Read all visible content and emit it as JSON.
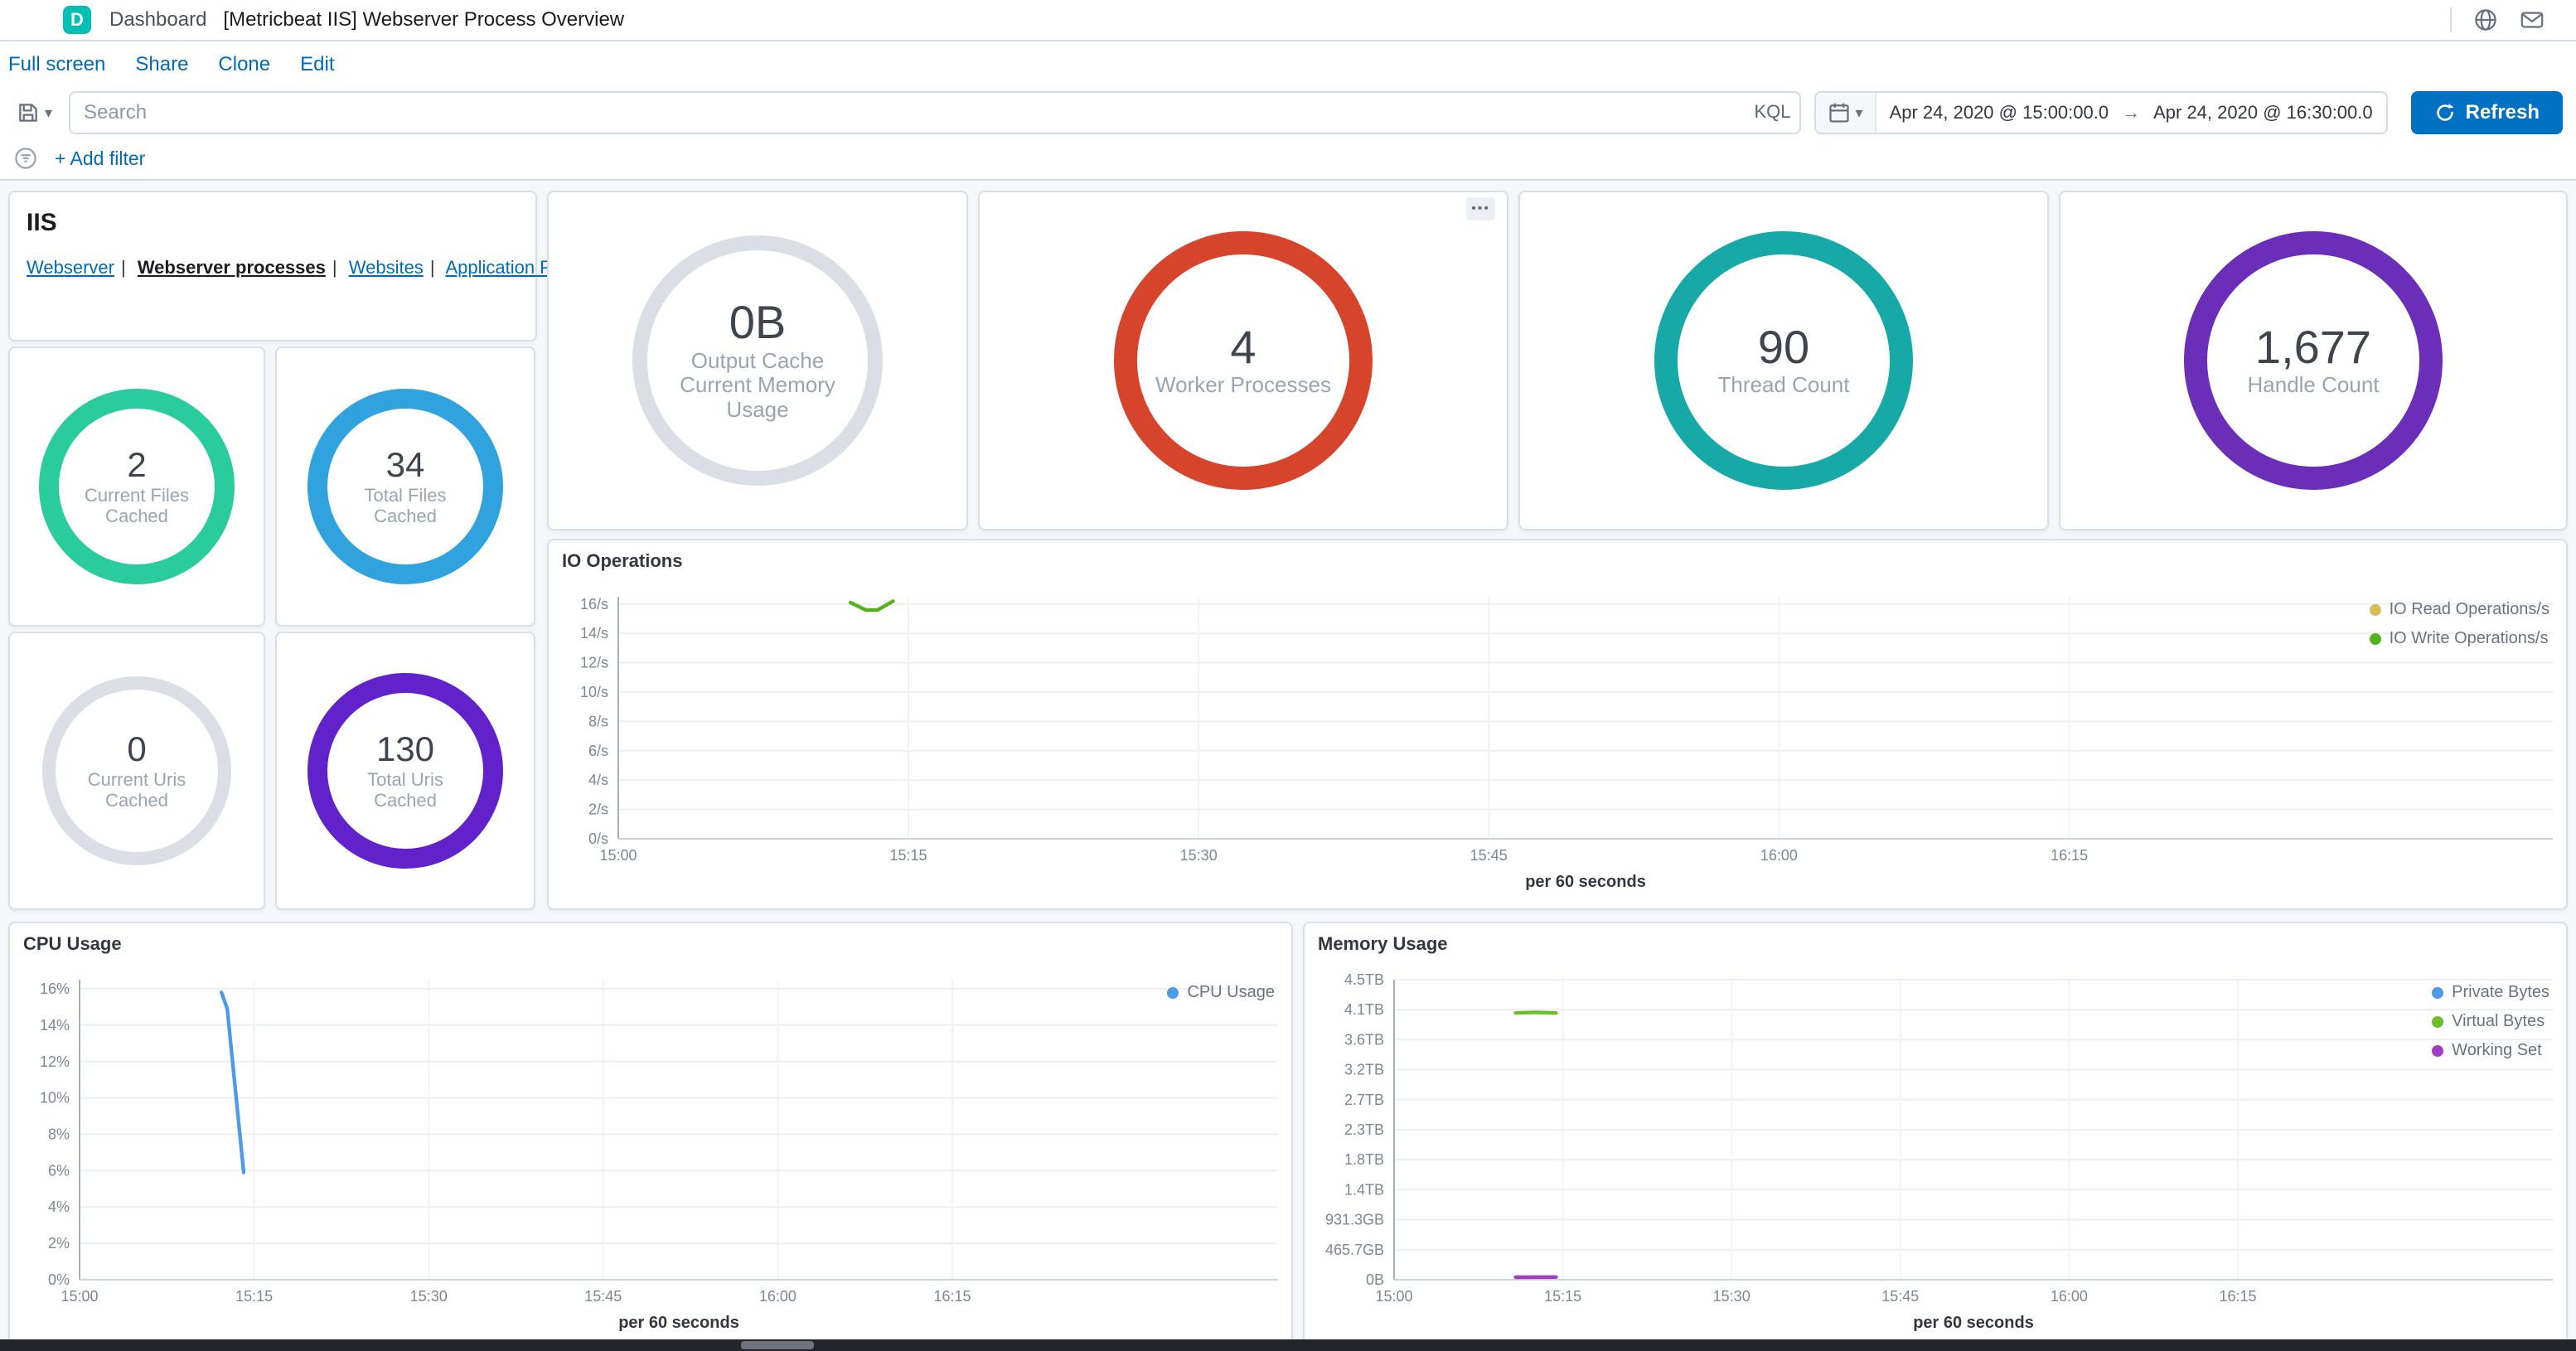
{
  "colors": {
    "accent_blue": "#006BB4",
    "refresh_button": "#0071C2",
    "space_avatar": "#00BFB3"
  },
  "icons": {
    "panel_options": "•••",
    "chevron_down": "▾"
  },
  "header": {
    "space_initial": "D",
    "breadcrumb": "Dashboard",
    "title": "[Metricbeat IIS] Webserver Process Overview"
  },
  "menu": {
    "links": [
      "Full screen",
      "Share",
      "Clone",
      "Edit"
    ]
  },
  "search_bar": {
    "placeholder": "Search",
    "query_language": "KQL"
  },
  "time_picker": {
    "start": "Apr 24, 2020 @ 15:00:00.0",
    "arrow": "→",
    "end": "Apr 24, 2020 @ 16:30:00.0",
    "refresh_label": "Refresh"
  },
  "filter_bar": {
    "add_filter": "+ Add filter"
  },
  "iis_panel": {
    "title": "IIS",
    "separator": "|",
    "links": [
      {
        "label": "Webserver",
        "active": false
      },
      {
        "label": "Webserver processes",
        "active": true
      },
      {
        "label": "Websites",
        "active": false
      },
      {
        "label": "Application Pools",
        "active": false
      }
    ]
  },
  "gauges": [
    {
      "id": "output-cache-memory",
      "value": "0B",
      "label": "Output Cache Current Memory Usage",
      "color": "#DBDEE5",
      "empty": true
    },
    {
      "id": "worker-processes",
      "value": "4",
      "label": "Worker Processes",
      "color": "#D6442C",
      "empty": false
    },
    {
      "id": "thread-count",
      "value": "90",
      "label": "Thread Count",
      "color": "#17A8A8",
      "empty": false
    },
    {
      "id": "handle-count",
      "value": "1,677",
      "label": "Handle Count",
      "color": "#6A2EB8",
      "empty": false
    },
    {
      "id": "current-files-cached",
      "value": "2",
      "label": "Current Files Cached",
      "color": "#2ACB9D",
      "empty": false
    },
    {
      "id": "total-files-cached",
      "value": "34",
      "label": "Total Files Cached",
      "color": "#30A3DE",
      "empty": false
    },
    {
      "id": "current-uris-cached",
      "value": "0",
      "label": "Current Uris Cached",
      "color": "#DBDEE5",
      "empty": true
    },
    {
      "id": "total-uris-cached",
      "value": "130",
      "label": "Total Uris Cached",
      "color": "#6122CC",
      "empty": false
    }
  ],
  "chart_data": [
    {
      "id": "io-operations",
      "type": "line",
      "title": "IO Operations",
      "xlabel": "per 60 seconds",
      "x_unit": "minutes after 15:00",
      "xlim": [
        0,
        100
      ],
      "xticks": [
        {
          "v": 0,
          "label": "15:00"
        },
        {
          "v": 15,
          "label": "15:15"
        },
        {
          "v": 30,
          "label": "15:30"
        },
        {
          "v": 45,
          "label": "15:45"
        },
        {
          "v": 60,
          "label": "16:00"
        },
        {
          "v": 75,
          "label": "16:15"
        }
      ],
      "ylim": [
        0,
        16.5
      ],
      "yticks": [
        {
          "v": 0,
          "label": "0/s"
        },
        {
          "v": 2,
          "label": "2/s"
        },
        {
          "v": 4,
          "label": "4/s"
        },
        {
          "v": 6,
          "label": "6/s"
        },
        {
          "v": 8,
          "label": "8/s"
        },
        {
          "v": 10,
          "label": "10/s"
        },
        {
          "v": 12,
          "label": "12/s"
        },
        {
          "v": 14,
          "label": "14/s"
        },
        {
          "v": 16,
          "label": "16/s"
        }
      ],
      "series": [
        {
          "name": "IO Read Operations/s",
          "color": "#D6BF57",
          "points": []
        },
        {
          "name": "IO Write Operations/s",
          "color": "#54B31C",
          "points": [
            [
              12,
              16.1
            ],
            [
              12.8,
              15.6
            ],
            [
              13.4,
              15.6
            ],
            [
              14.2,
              16.2
            ]
          ]
        }
      ]
    },
    {
      "id": "cpu-usage",
      "type": "line",
      "title": "CPU Usage",
      "xlabel": "per 60 seconds",
      "x_unit": "minutes after 15:00",
      "xlim": [
        0,
        103
      ],
      "xticks": [
        {
          "v": 0,
          "label": "15:00"
        },
        {
          "v": 15,
          "label": "15:15"
        },
        {
          "v": 30,
          "label": "15:30"
        },
        {
          "v": 45,
          "label": "15:45"
        },
        {
          "v": 60,
          "label": "16:00"
        },
        {
          "v": 75,
          "label": "16:15"
        }
      ],
      "ylim": [
        0,
        16.5
      ],
      "yticks": [
        {
          "v": 0,
          "label": "0%"
        },
        {
          "v": 2,
          "label": "2%"
        },
        {
          "v": 4,
          "label": "4%"
        },
        {
          "v": 6,
          "label": "6%"
        },
        {
          "v": 8,
          "label": "8%"
        },
        {
          "v": 10,
          "label": "10%"
        },
        {
          "v": 12,
          "label": "12%"
        },
        {
          "v": 14,
          "label": "14%"
        },
        {
          "v": 16,
          "label": "16%"
        }
      ],
      "series": [
        {
          "name": "CPU Usage",
          "color": "#4C9AE8",
          "points": [
            [
              12.2,
              15.8
            ],
            [
              12.7,
              14.9
            ],
            [
              14.1,
              5.9
            ]
          ]
        }
      ]
    },
    {
      "id": "memory-usage",
      "type": "line",
      "title": "Memory Usage",
      "xlabel": "per 60 seconds",
      "x_unit": "minutes after 15:00",
      "y_unit": "GB",
      "xlim": [
        0,
        103
      ],
      "xticks": [
        {
          "v": 0,
          "label": "15:00"
        },
        {
          "v": 15,
          "label": "15:15"
        },
        {
          "v": 30,
          "label": "15:30"
        },
        {
          "v": 45,
          "label": "15:45"
        },
        {
          "v": 60,
          "label": "16:00"
        },
        {
          "v": 75,
          "label": "16:15"
        }
      ],
      "ylim": [
        0,
        4656.6
      ],
      "yticks": [
        {
          "v": 0,
          "label": "0B"
        },
        {
          "v": 465.7,
          "label": "465.7GB"
        },
        {
          "v": 931.3,
          "label": "931.3GB"
        },
        {
          "v": 1397,
          "label": "1.4TB"
        },
        {
          "v": 1862.6,
          "label": "1.8TB"
        },
        {
          "v": 2328.3,
          "label": "2.3TB"
        },
        {
          "v": 2794,
          "label": "2.7TB"
        },
        {
          "v": 3259.6,
          "label": "3.2TB"
        },
        {
          "v": 3725.3,
          "label": "3.6TB"
        },
        {
          "v": 4191,
          "label": "4.1TB"
        },
        {
          "v": 4656.6,
          "label": "4.5TB"
        }
      ],
      "series": [
        {
          "name": "Private Bytes",
          "color": "#4C9AE8",
          "points": []
        },
        {
          "name": "Virtual Bytes",
          "color": "#6DBE2B",
          "points": [
            [
              10.8,
              4140
            ],
            [
              12.5,
              4150
            ],
            [
              14.4,
              4140
            ]
          ]
        },
        {
          "name": "Working Set",
          "color": "#A43BC6",
          "points": [
            [
              10.8,
              38
            ],
            [
              14.4,
              40
            ]
          ]
        }
      ]
    }
  ]
}
